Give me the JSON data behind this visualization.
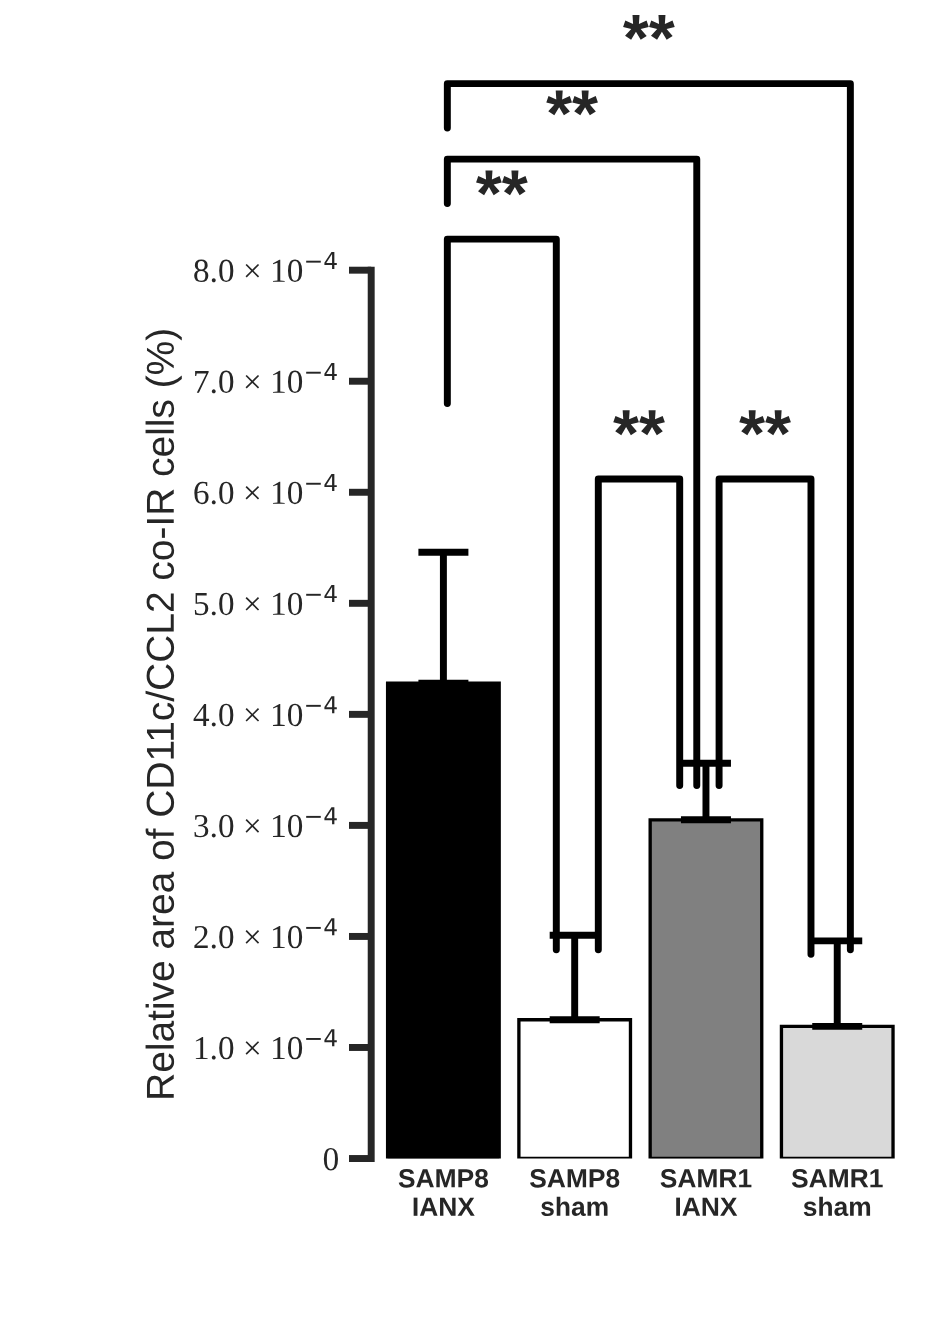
{
  "chart_data": {
    "type": "bar",
    "ylabel": "Relative area of CD11c/CCL2 co-IR cells (%)",
    "categories": [
      "SAMP8\nIANX",
      "SAMP8\nsham",
      "SAMR1\nIANX",
      "SAMR1\nsham"
    ],
    "values": [
      0.000428,
      0.000125,
      0.000305,
      0.000119
    ],
    "colors": [
      "#000000",
      "#ffffff",
      "#808080",
      "#d9d9d9"
    ],
    "errors": [
      [
        0.000428,
        0.000546
      ],
      [
        0.000125,
        0.000201
      ],
      [
        0.000305,
        0.000356
      ],
      [
        0.000119,
        0.000196
      ]
    ],
    "ylim": [
      0,
      0.0008
    ],
    "yticks": [
      {
        "value": 0,
        "label": "0"
      },
      {
        "value": 0.0001,
        "label": "1.0 × 10$^{−4}$"
      },
      {
        "value": 0.0002,
        "label": "2.0 × 10$^{−4}$"
      },
      {
        "value": 0.0003,
        "label": "3.0 × 10$^{−4}$"
      },
      {
        "value": 0.0004,
        "label": "4.0 × 10$^{−4}$"
      },
      {
        "value": 0.0005,
        "label": "5.0 × 10$^{−4}$"
      },
      {
        "value": 0.0006,
        "label": "6.0 × 10$^{−4}$"
      },
      {
        "value": 0.0007,
        "label": "7.0 × 10$^{−4}$"
      },
      {
        "value": 0.0008,
        "label": "8.0 × 10$^{−4}$"
      }
    ],
    "annotations": [
      "**",
      "**",
      "**",
      "**",
      "**"
    ],
    "grid": false,
    "legend": false
  }
}
